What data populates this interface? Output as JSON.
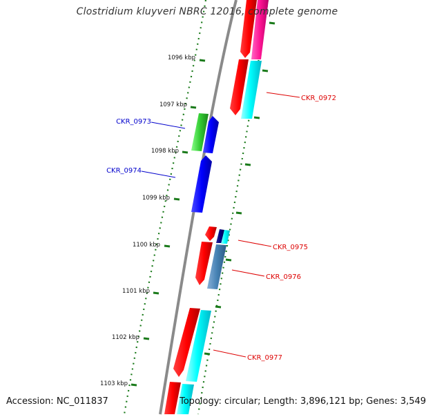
{
  "title": "Clostridium kluyveri NBRC 12016, complete genome",
  "footer": {
    "accession": "Accession: NC_011837",
    "summary": "Topology: circular; Length: 3,896,121 bp; Genes: 3,549"
  },
  "colors": {
    "backbone": "#808080",
    "tick": "#1a7a1a",
    "label_red": "#dd0000",
    "label_blue": "#0000cc"
  },
  "ticks": [
    {
      "label": "1096 kbp"
    },
    {
      "label": "1097 kbp"
    },
    {
      "label": "1098 kbp"
    },
    {
      "label": "1099 kbp"
    },
    {
      "label": "1100 kbp"
    },
    {
      "label": "1101 kbp"
    },
    {
      "label": "1102 kbp"
    },
    {
      "label": "1103 kbp"
    }
  ],
  "gene_labels": [
    {
      "text": "CKR_0972",
      "strand": "plus"
    },
    {
      "text": "CKR_0973",
      "strand": "minus"
    },
    {
      "text": "CKR_0974",
      "strand": "minus"
    },
    {
      "text": "CKR_0975",
      "strand": "plus"
    },
    {
      "text": "CKR_0976",
      "strand": "plus"
    },
    {
      "text": "CKR_0977",
      "strand": "plus"
    }
  ]
}
